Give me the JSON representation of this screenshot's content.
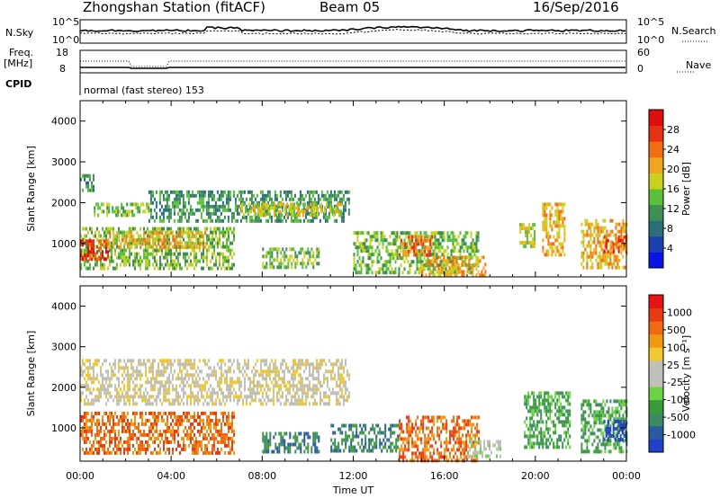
{
  "header": {
    "station": "Zhongshan Station (fitACF)",
    "beam": "Beam 05",
    "date": "16/Sep/2016"
  },
  "summary": {
    "nsky_label": "N.Sky",
    "nsky_ticks": [
      "10^5",
      "10^0"
    ],
    "nsearch_label": "N.Search",
    "nsearch_ticks": [
      "10^5",
      "10^0"
    ],
    "freq_label": "Freq.",
    "freq_unit": "[MHz]",
    "freq_ticks": [
      "18",
      "8"
    ],
    "nave_label": "Nave",
    "nave_ticks": [
      "60",
      "0"
    ],
    "cpid_label": "CPID",
    "cpid_text": "normal (fast stereo) 153"
  },
  "chart_data": [
    {
      "type": "heatmap",
      "panel": "power",
      "ylabel": "Slant Range [km]",
      "yticks": [
        "1000",
        "2000",
        "3000",
        "4000"
      ],
      "ylim": [
        180,
        4500
      ],
      "xlim": [
        0,
        24
      ],
      "colorbar_label": "Power [dB]",
      "colorbar_ticks": [
        "4",
        "8",
        "12",
        "16",
        "20",
        "24",
        "28"
      ],
      "colorscale": [
        "#0a14e6",
        "#1c3fae",
        "#2a6e78",
        "#3f8f55",
        "#5bbf3a",
        "#c8d21e",
        "#f0a51e",
        "#f06e14",
        "#e63214",
        "#dc0f0f"
      ],
      "regions": [
        {
          "t0": 0.0,
          "t1": 0.6,
          "r0": 2300,
          "r1": 2700,
          "level": 3
        },
        {
          "t0": 0.6,
          "t1": 3.0,
          "r0": 1700,
          "r1": 2000,
          "level": 4
        },
        {
          "t0": 3.0,
          "t1": 11.8,
          "r0": 1550,
          "r1": 2300,
          "level": 3
        },
        {
          "t0": 7.0,
          "t1": 11.5,
          "r0": 1700,
          "r1": 2000,
          "level": 5
        },
        {
          "t0": 0.0,
          "t1": 6.8,
          "r0": 400,
          "r1": 1400,
          "level": 4
        },
        {
          "t0": 0.0,
          "t1": 1.2,
          "r0": 600,
          "r1": 1100,
          "level": 8
        },
        {
          "t0": 1.2,
          "t1": 5.5,
          "r0": 900,
          "r1": 1300,
          "level": 6
        },
        {
          "t0": 8.0,
          "t1": 10.5,
          "r0": 400,
          "r1": 900,
          "level": 4
        },
        {
          "t0": 12.0,
          "t1": 17.5,
          "r0": 300,
          "r1": 1300,
          "level": 4
        },
        {
          "t0": 14.0,
          "t1": 15.5,
          "r0": 700,
          "r1": 1200,
          "level": 7
        },
        {
          "t0": 15.0,
          "t1": 17.8,
          "r0": 180,
          "r1": 700,
          "level": 6
        },
        {
          "t0": 19.3,
          "t1": 20.0,
          "r0": 900,
          "r1": 1500,
          "level": 5
        },
        {
          "t0": 20.3,
          "t1": 21.3,
          "r0": 700,
          "r1": 2000,
          "level": 6
        },
        {
          "t0": 22.0,
          "t1": 24.0,
          "r0": 400,
          "r1": 1600,
          "level": 6
        },
        {
          "t0": 23.0,
          "t1": 24.0,
          "r0": 800,
          "r1": 1200,
          "level": 8
        }
      ]
    },
    {
      "type": "heatmap",
      "panel": "velocity",
      "ylabel": "Slant Range [km]",
      "yticks": [
        "1000",
        "2000",
        "3000",
        "4000"
      ],
      "ylim": [
        180,
        4500
      ],
      "xlim": [
        0,
        24
      ],
      "colorbar_label": "Velocity [m s⁻¹]",
      "colorbar_ticks": [
        "1000",
        "500",
        "100",
        "25",
        "-25",
        "-100",
        "-500",
        "-1000"
      ],
      "colorscale": [
        "#2340c8",
        "#2a5aa0",
        "#3c8a64",
        "#3a9a3a",
        "#6dd246",
        "#c0c0b8",
        "#c0c0b8",
        "#f0c832",
        "#f09a14",
        "#f06a14",
        "#e63c14",
        "#e61414"
      ],
      "regions": [
        {
          "t0": 0.0,
          "t1": 11.8,
          "r0": 1550,
          "r1": 2700,
          "level": 6
        },
        {
          "t0": 0.0,
          "t1": 6.8,
          "r0": 400,
          "r1": 1400,
          "level": 9
        },
        {
          "t0": 8.0,
          "t1": 10.5,
          "r0": 400,
          "r1": 900,
          "level": 2
        },
        {
          "t0": 11.0,
          "t1": 14.0,
          "r0": 400,
          "r1": 1100,
          "level": 2
        },
        {
          "t0": 14.0,
          "t1": 17.5,
          "r0": 200,
          "r1": 1300,
          "level": 9
        },
        {
          "t0": 17.0,
          "t1": 18.5,
          "r0": 300,
          "r1": 700,
          "level": 5
        },
        {
          "t0": 19.5,
          "t1": 21.5,
          "r0": 500,
          "r1": 1900,
          "level": 3
        },
        {
          "t0": 22.0,
          "t1": 24.0,
          "r0": 400,
          "r1": 1700,
          "level": 3
        },
        {
          "t0": 23.0,
          "t1": 24.0,
          "r0": 700,
          "r1": 1200,
          "level": 0
        }
      ]
    }
  ],
  "xaxis": {
    "ticks": [
      "00:00",
      "04:00",
      "08:00",
      "12:00",
      "16:00",
      "20:00",
      "00:00"
    ],
    "label": "Time UT"
  }
}
